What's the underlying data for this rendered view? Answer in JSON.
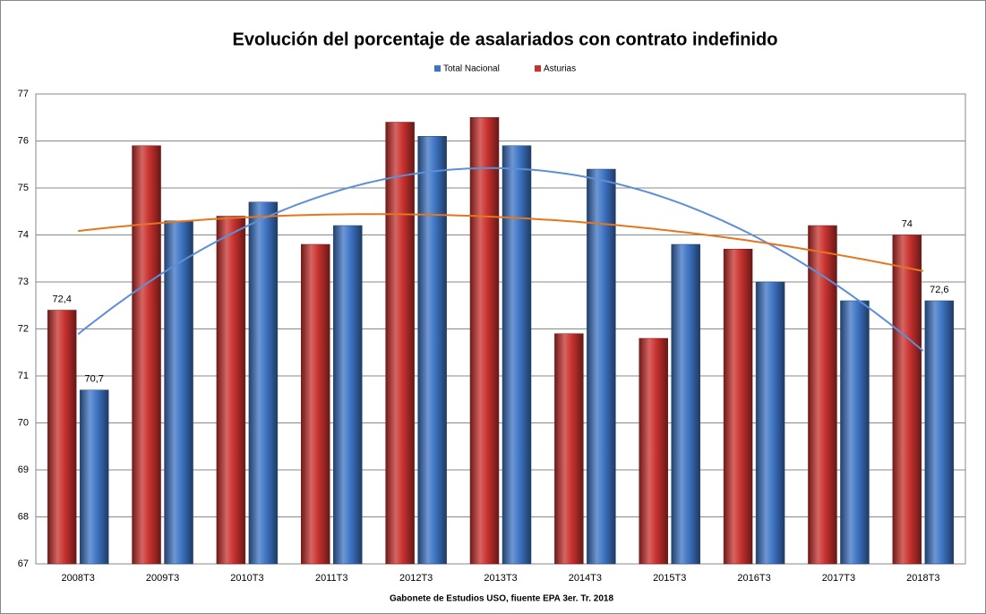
{
  "chart_data": {
    "type": "bar",
    "title": "Evolución del porcentaje de asalariados con contrato indefinido",
    "x_label": "Gabonete de Estudios USO, fiuente EPA 3er. Tr. 2018",
    "categories": [
      "2008T3",
      "2009T3",
      "2010T3",
      "2011T3",
      "2012T3",
      "2013T3",
      "2014T3",
      "2015T3",
      "2016T3",
      "2017T3",
      "2018T3"
    ],
    "series": [
      {
        "name": "Total Nacional",
        "color": "#3d74c4",
        "trendline": {
          "type": "polynomial",
          "order": 2,
          "color": "#5b8fd8"
        },
        "values": [
          70.7,
          74.3,
          74.7,
          74.2,
          76.1,
          75.9,
          75.4,
          73.8,
          73.0,
          72.6,
          72.6
        ],
        "value_labels": [
          "70,7",
          null,
          null,
          null,
          null,
          null,
          null,
          null,
          null,
          null,
          "72,6"
        ]
      },
      {
        "name": "Asturias",
        "color": "#c8312e",
        "trendline": {
          "type": "polynomial",
          "order": 2,
          "color": "#e4761e"
        },
        "values": [
          72.4,
          75.9,
          74.4,
          73.8,
          76.4,
          76.5,
          71.9,
          71.8,
          73.7,
          74.2,
          74.0
        ],
        "value_labels": [
          "72,4",
          null,
          null,
          null,
          null,
          null,
          null,
          null,
          null,
          null,
          "74"
        ]
      }
    ],
    "ylim": [
      67,
      77
    ],
    "yticks": [
      67,
      68,
      69,
      70,
      71,
      72,
      73,
      74,
      75,
      76,
      77
    ],
    "grid": true,
    "legend": "top"
  }
}
